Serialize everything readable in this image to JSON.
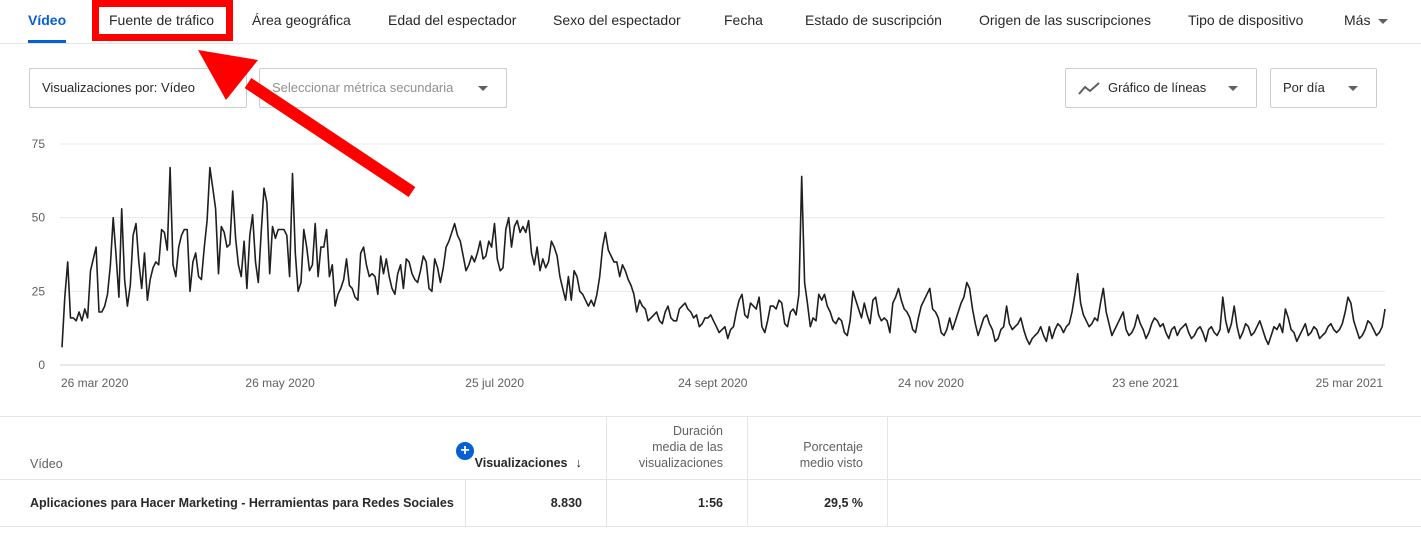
{
  "tabs": [
    {
      "label": "Vídeo",
      "active": true
    },
    {
      "label": "Fuente de tráfico",
      "active": false
    },
    {
      "label": "Área geográfica",
      "active": false
    },
    {
      "label": "Edad del espectador",
      "active": false
    },
    {
      "label": "Sexo del espectador",
      "active": false
    },
    {
      "label": "Fecha",
      "active": false
    },
    {
      "label": "Estado de suscripción",
      "active": false
    },
    {
      "label": "Origen de las suscripciones",
      "active": false
    },
    {
      "label": "Tipo de dispositivo",
      "active": false
    },
    {
      "label": "Más",
      "active": false
    }
  ],
  "controls": {
    "metric": "Visualizaciones por: Vídeo",
    "secondary_placeholder": "Seleccionar métrica secundaria",
    "chart_type": "Gráfico de líneas",
    "period": "Por día"
  },
  "icons": {
    "chart_type_icon": "line-chart-icon",
    "add_metric_icon": "plus-icon",
    "sort_icon": "arrow-down-icon"
  },
  "colors": {
    "accent": "#065fd4",
    "highlight": "#ff0000",
    "line": "#1f1f1f"
  },
  "table": {
    "headers": {
      "video": "Vídeo",
      "views": "Visualizaciones",
      "avg_duration": [
        "Duración",
        "media de las",
        "visualizaciones"
      ],
      "avg_percent": [
        "Porcentaje",
        "medio visto"
      ]
    },
    "rows": [
      {
        "title": "Aplicaciones para Hacer Marketing - Herramientas para Redes Sociales",
        "views": "8.830",
        "avg_duration": "1:56",
        "avg_percent": "29,5 %"
      }
    ]
  },
  "chart_data": {
    "type": "line",
    "x_start": "2020-03-26",
    "x_end": "2021-03-31",
    "x_tick_labels": [
      "26 mar 2020",
      "26 may 2020",
      "25 jul 2020",
      "24 sept 2020",
      "24 nov 2020",
      "23 ene 2021",
      "25 mar 2021"
    ],
    "y_ticks": [
      0,
      25,
      50,
      75
    ],
    "ylim": [
      0,
      75
    ],
    "grid": true,
    "series": [
      {
        "values": [
          6,
          23,
          35,
          16,
          16,
          15,
          18,
          15,
          19,
          16,
          32,
          36,
          40,
          18,
          18,
          20,
          24,
          34,
          50,
          37,
          23,
          53,
          29,
          20,
          27,
          44,
          48,
          35,
          26,
          38,
          22,
          29,
          33,
          35,
          34,
          46,
          45,
          39,
          67,
          34,
          30,
          40,
          44,
          46,
          46,
          25,
          35,
          38,
          30,
          29,
          40,
          49,
          67,
          60,
          53,
          31,
          47,
          45,
          40,
          41,
          59,
          43,
          34,
          30,
          42,
          26,
          44,
          51,
          35,
          28,
          45,
          60,
          55,
          31,
          47,
          43,
          46,
          46,
          46,
          44,
          30,
          65,
          38,
          25,
          28,
          46,
          40,
          32,
          34,
          48,
          30,
          40,
          40,
          46,
          30,
          34,
          20,
          24,
          26,
          29,
          36,
          27,
          26,
          23,
          22,
          38,
          40,
          34,
          30,
          31,
          30,
          24,
          37,
          31,
          36,
          30,
          26,
          24,
          31,
          34,
          26,
          36,
          35,
          31,
          29,
          28,
          32,
          37,
          35,
          26,
          25,
          36,
          33,
          28,
          33,
          40,
          42,
          45,
          48,
          44,
          42,
          37,
          32,
          34,
          37,
          35,
          38,
          42,
          36,
          37,
          42,
          40,
          48,
          36,
          32,
          33,
          46,
          50,
          40,
          47,
          49,
          45,
          47,
          45,
          49,
          38,
          34,
          40,
          32,
          36,
          33,
          35,
          42,
          40,
          37,
          30,
          26,
          22,
          30,
          22,
          32,
          30,
          25,
          24,
          22,
          20,
          22,
          20,
          24,
          30,
          40,
          45,
          39,
          37,
          35,
          35,
          30,
          34,
          32,
          29,
          27,
          24,
          18,
          22,
          20,
          19,
          15,
          16,
          17,
          18,
          15,
          14,
          18,
          20,
          16,
          15,
          15,
          19,
          20,
          21,
          19,
          18,
          16,
          17,
          13,
          14,
          16,
          16,
          17,
          15,
          13,
          11,
          12,
          13,
          9,
          12,
          13,
          18,
          22,
          24,
          17,
          16,
          21,
          20,
          19,
          23,
          13,
          11,
          15,
          20,
          20,
          19,
          22,
          21,
          14,
          13,
          18,
          19,
          17,
          24,
          64,
          28,
          21,
          13,
          16,
          15,
          24,
          22,
          24,
          20,
          18,
          15,
          14,
          16,
          15,
          11,
          10,
          15,
          25,
          22,
          19,
          16,
          21,
          17,
          14,
          22,
          23,
          17,
          15,
          16,
          15,
          11,
          21,
          23,
          26,
          22,
          19,
          18,
          16,
          12,
          11,
          16,
          20,
          22,
          24,
          26,
          19,
          18,
          16,
          11,
          10,
          12,
          16,
          12,
          15,
          18,
          21,
          23,
          28,
          26,
          19,
          14,
          10,
          13,
          16,
          17,
          14,
          12,
          8,
          9,
          12,
          13,
          20,
          14,
          12,
          13,
          14,
          16,
          12,
          9,
          7,
          9,
          10,
          11,
          13,
          10,
          8,
          13,
          9,
          12,
          14,
          13,
          11,
          13,
          14,
          18,
          24,
          31,
          21,
          17,
          15,
          13,
          14,
          16,
          15,
          21,
          26,
          18,
          14,
          10,
          12,
          14,
          16,
          18,
          12,
          10,
          11,
          13,
          17,
          14,
          12,
          9,
          11,
          14,
          16,
          15,
          13,
          14,
          11,
          9,
          12,
          13,
          10,
          12,
          13,
          14,
          11,
          9,
          10,
          12,
          13,
          11,
          8,
          12,
          13,
          11,
          10,
          12,
          23,
          15,
          11,
          14,
          20,
          13,
          9,
          11,
          14,
          13,
          10,
          11,
          13,
          15,
          12,
          9,
          7,
          10,
          13,
          12,
          14,
          11,
          19,
          16,
          12,
          11,
          8,
          10,
          12,
          14,
          10,
          11,
          13,
          12,
          9,
          10,
          11,
          13,
          14,
          12,
          11,
          12,
          14,
          18,
          23,
          21,
          15,
          12,
          9,
          10,
          12,
          15,
          14,
          12,
          10,
          11,
          13,
          19
        ]
      }
    ]
  }
}
